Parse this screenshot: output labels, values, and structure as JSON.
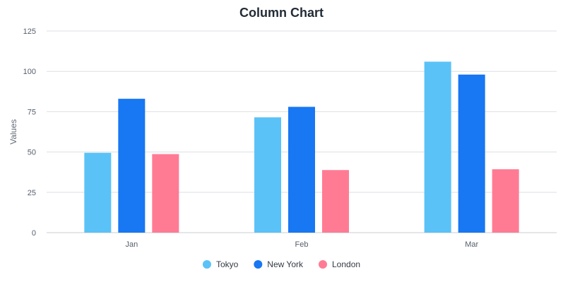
{
  "chart_data": {
    "type": "bar",
    "title": "Column Chart",
    "xlabel": "",
    "ylabel": "Values",
    "categories": [
      "Jan",
      "Feb",
      "Mar"
    ],
    "series": [
      {
        "name": "Tokyo",
        "color": "#5bc2f7",
        "values": [
          49.5,
          71.5,
          106
        ]
      },
      {
        "name": "New York",
        "color": "#1877f2",
        "values": [
          83,
          78,
          98
        ]
      },
      {
        "name": "London",
        "color": "#ff7b94",
        "values": [
          48.7,
          38.8,
          39.3
        ]
      }
    ],
    "ylim": [
      0,
      125
    ],
    "yticks": [
      "0",
      "25",
      "50",
      "75",
      "100",
      "125"
    ],
    "grid": true,
    "legend_position": "bottom-center"
  }
}
